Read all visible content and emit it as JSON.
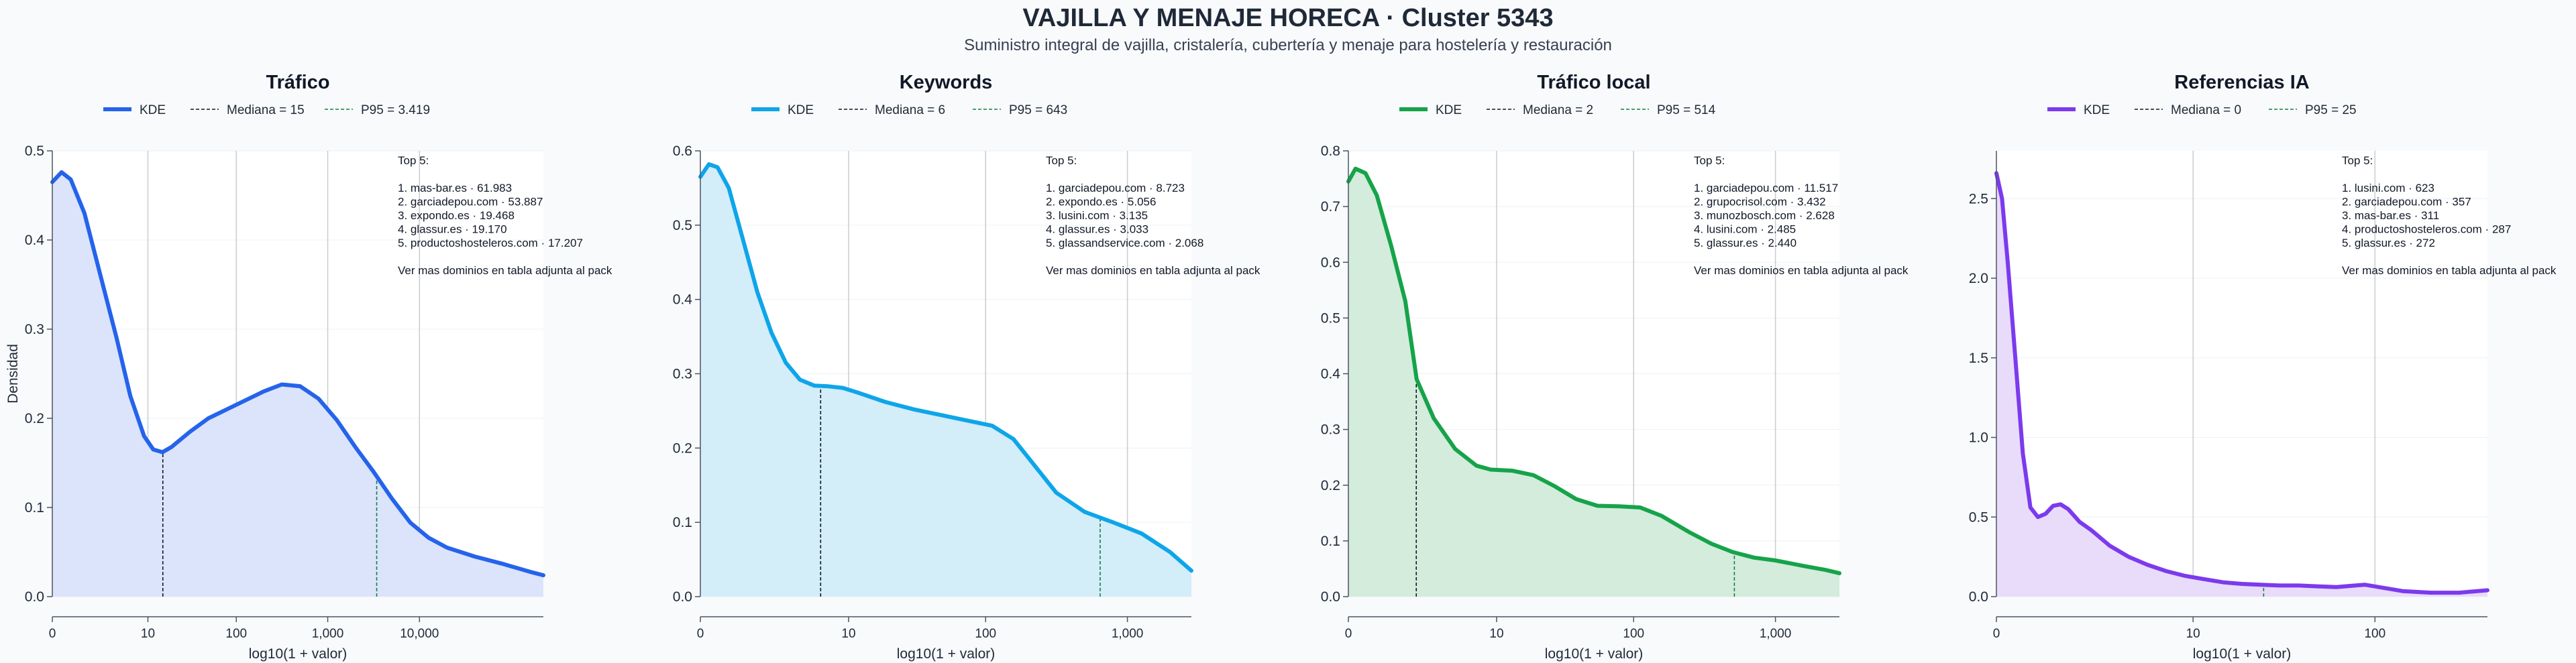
{
  "title": "VAJILLA Y MENAJE HORECA · Cluster 5343",
  "subtitle": "Suministro integral de vajilla, cristalería, cubertería y menaje para hostelería y restauración",
  "chart_data": [
    {
      "type": "area",
      "title": "Tráfico",
      "color": "#2563eb",
      "fill": "#dbe4fb",
      "xlabel": "log10(1 + valor)",
      "ylabel": "Densidad",
      "xscale": "log10(1+x)",
      "xlim": [
        0,
        5.35
      ],
      "ylim": [
        0,
        0.5
      ],
      "yticks": [
        0.0,
        0.1,
        0.2,
        0.3,
        0.4,
        0.5
      ],
      "ytick_labels": [
        "0.0",
        "0.1",
        "0.2",
        "0.3",
        "0.4",
        "0.5"
      ],
      "xticks": [
        0,
        10,
        100,
        1000,
        10000
      ],
      "xtick_labels": [
        "0",
        "10",
        "100",
        "1,000",
        "10,000"
      ],
      "legend": [
        "KDE",
        "Mediana = 15",
        "P95 = 3.419"
      ],
      "legend_position": "top-center",
      "median": 15,
      "p95": 3419,
      "kde": [
        [
          0,
          0.465
        ],
        [
          0.1,
          0.476
        ],
        [
          0.2,
          0.468
        ],
        [
          0.35,
          0.43
        ],
        [
          0.5,
          0.37
        ],
        [
          0.7,
          0.29
        ],
        [
          0.85,
          0.225
        ],
        [
          1.0,
          0.18
        ],
        [
          1.1,
          0.165
        ],
        [
          1.2,
          0.162
        ],
        [
          1.3,
          0.168
        ],
        [
          1.5,
          0.185
        ],
        [
          1.7,
          0.2
        ],
        [
          1.9,
          0.21
        ],
        [
          2.1,
          0.22
        ],
        [
          2.3,
          0.23
        ],
        [
          2.5,
          0.238
        ],
        [
          2.7,
          0.236
        ],
        [
          2.9,
          0.222
        ],
        [
          3.1,
          0.198
        ],
        [
          3.3,
          0.168
        ],
        [
          3.5,
          0.14
        ],
        [
          3.7,
          0.11
        ],
        [
          3.9,
          0.083
        ],
        [
          4.1,
          0.066
        ],
        [
          4.3,
          0.055
        ],
        [
          4.6,
          0.045
        ],
        [
          4.9,
          0.037
        ],
        [
          5.2,
          0.028
        ],
        [
          5.35,
          0.024
        ]
      ],
      "annotation": [
        "Top 5:",
        "",
        "1. mas-bar.es · 61.983",
        "2. garciadepou.com · 53.887",
        "3. expondo.es · 19.468",
        "4. glassur.es · 19.170",
        "5. productoshosteleros.com · 17.207",
        "",
        "Ver mas dominios en tabla adjunta al pack"
      ]
    },
    {
      "type": "area",
      "title": "Keywords",
      "color": "#0ea5e9",
      "fill": "#d3edf9",
      "xlabel": "log10(1 + valor)",
      "ylabel": "",
      "xscale": "log10(1+x)",
      "xlim": [
        0,
        3.45
      ],
      "ylim": [
        0,
        0.6
      ],
      "yticks": [
        0.0,
        0.1,
        0.2,
        0.3,
        0.4,
        0.5,
        0.6
      ],
      "ytick_labels": [
        "0.0",
        "0.1",
        "0.2",
        "0.3",
        "0.4",
        "0.5",
        "0.6"
      ],
      "xticks": [
        0,
        10,
        100,
        1000
      ],
      "xtick_labels": [
        "0",
        "10",
        "100",
        "1,000"
      ],
      "legend": [
        "KDE",
        "Mediana = 6",
        "P95 = 643"
      ],
      "legend_position": "top-center",
      "median": 6,
      "p95": 643,
      "kde": [
        [
          0,
          0.565
        ],
        [
          0.06,
          0.582
        ],
        [
          0.12,
          0.578
        ],
        [
          0.2,
          0.55
        ],
        [
          0.3,
          0.48
        ],
        [
          0.4,
          0.41
        ],
        [
          0.5,
          0.355
        ],
        [
          0.6,
          0.315
        ],
        [
          0.7,
          0.292
        ],
        [
          0.8,
          0.284
        ],
        [
          0.9,
          0.283
        ],
        [
          1.0,
          0.281
        ],
        [
          1.1,
          0.275
        ],
        [
          1.3,
          0.262
        ],
        [
          1.5,
          0.252
        ],
        [
          1.7,
          0.244
        ],
        [
          1.9,
          0.236
        ],
        [
          2.05,
          0.23
        ],
        [
          2.2,
          0.212
        ],
        [
          2.35,
          0.176
        ],
        [
          2.5,
          0.14
        ],
        [
          2.7,
          0.114
        ],
        [
          2.9,
          0.1
        ],
        [
          3.1,
          0.085
        ],
        [
          3.3,
          0.06
        ],
        [
          3.45,
          0.035
        ]
      ],
      "annotation": [
        "Top 5:",
        "",
        "1. garciadepou.com · 8.723",
        "2. expondo.es · 5.056",
        "3. lusini.com · 3.135",
        "4. glassur.es · 3.033",
        "5. glassandservice.com · 2.068",
        "",
        "Ver mas dominios en tabla adjunta al pack"
      ]
    },
    {
      "type": "area",
      "title": "Tráfico local",
      "color": "#16a34a",
      "fill": "#d3ecdc",
      "xlabel": "log10(1 + valor)",
      "ylabel": "",
      "xscale": "log10(1+x)",
      "xlim": [
        0,
        3.45
      ],
      "ylim": [
        0,
        0.8
      ],
      "yticks": [
        0.0,
        0.1,
        0.2,
        0.3,
        0.4,
        0.5,
        0.6,
        0.7,
        0.8
      ],
      "ytick_labels": [
        "0.0",
        "0.1",
        "0.2",
        "0.3",
        "0.4",
        "0.5",
        "0.6",
        "0.7",
        "0.8"
      ],
      "xticks": [
        0,
        10,
        100,
        1000
      ],
      "xtick_labels": [
        "0",
        "10",
        "100",
        "1,000"
      ],
      "legend": [
        "KDE",
        "Mediana = 2",
        "P95 = 514"
      ],
      "legend_position": "top-center",
      "median": 2,
      "p95": 514,
      "kde": [
        [
          0,
          0.745
        ],
        [
          0.05,
          0.768
        ],
        [
          0.12,
          0.76
        ],
        [
          0.2,
          0.72
        ],
        [
          0.3,
          0.63
        ],
        [
          0.4,
          0.53
        ],
        [
          0.48,
          0.39
        ],
        [
          0.6,
          0.32
        ],
        [
          0.75,
          0.265
        ],
        [
          0.9,
          0.235
        ],
        [
          1.0,
          0.228
        ],
        [
          1.15,
          0.226
        ],
        [
          1.3,
          0.218
        ],
        [
          1.45,
          0.198
        ],
        [
          1.6,
          0.175
        ],
        [
          1.75,
          0.163
        ],
        [
          1.9,
          0.162
        ],
        [
          2.05,
          0.16
        ],
        [
          2.2,
          0.145
        ],
        [
          2.4,
          0.115
        ],
        [
          2.55,
          0.095
        ],
        [
          2.7,
          0.08
        ],
        [
          2.85,
          0.07
        ],
        [
          3.0,
          0.065
        ],
        [
          3.2,
          0.055
        ],
        [
          3.35,
          0.048
        ],
        [
          3.45,
          0.042
        ]
      ],
      "annotation": [
        "Top 5:",
        "",
        "1. garciadepou.com · 11.517",
        "2. grupocrisol.com · 3.432",
        "3. munozbosch.com · 2.628",
        "4. lusini.com · 2.485",
        "5. glassur.es · 2.440",
        "",
        "Ver mas dominios en tabla adjunta al pack"
      ]
    },
    {
      "type": "area",
      "title": "Referencias IA",
      "color": "#7c3aed",
      "fill": "#e8dcfa",
      "xlabel": "log10(1 + valor)",
      "ylabel": "",
      "xscale": "log10(1+x)",
      "xlim": [
        0,
        2.6
      ],
      "ylim": [
        0,
        2.8
      ],
      "yticks": [
        0.0,
        0.5,
        1.0,
        1.5,
        2.0,
        2.5
      ],
      "ytick_labels": [
        "0.0",
        "0.5",
        "1.0",
        "1.5",
        "2.0",
        "2.5"
      ],
      "xticks": [
        0,
        10,
        100
      ],
      "xtick_labels": [
        "0",
        "10",
        "100"
      ],
      "legend": [
        "KDE",
        "Mediana = 0",
        "P95 = 25"
      ],
      "legend_position": "top-center",
      "median": 0,
      "p95": 25,
      "kde": [
        [
          0,
          2.66
        ],
        [
          0.03,
          2.5
        ],
        [
          0.06,
          2.1
        ],
        [
          0.1,
          1.5
        ],
        [
          0.14,
          0.9
        ],
        [
          0.18,
          0.56
        ],
        [
          0.22,
          0.5
        ],
        [
          0.26,
          0.52
        ],
        [
          0.3,
          0.57
        ],
        [
          0.34,
          0.58
        ],
        [
          0.38,
          0.55
        ],
        [
          0.44,
          0.47
        ],
        [
          0.5,
          0.42
        ],
        [
          0.6,
          0.32
        ],
        [
          0.7,
          0.25
        ],
        [
          0.8,
          0.2
        ],
        [
          0.9,
          0.16
        ],
        [
          1.0,
          0.13
        ],
        [
          1.1,
          0.11
        ],
        [
          1.2,
          0.09
        ],
        [
          1.3,
          0.08
        ],
        [
          1.4,
          0.075
        ],
        [
          1.5,
          0.07
        ],
        [
          1.6,
          0.07
        ],
        [
          1.7,
          0.065
        ],
        [
          1.8,
          0.06
        ],
        [
          1.9,
          0.07
        ],
        [
          1.95,
          0.075
        ],
        [
          2.05,
          0.055
        ],
        [
          2.15,
          0.035
        ],
        [
          2.3,
          0.025
        ],
        [
          2.45,
          0.025
        ],
        [
          2.6,
          0.04
        ]
      ],
      "annotation": [
        "Top 5:",
        "",
        "1. lusini.com · 623",
        "2. garciadepou.com · 357",
        "3. mas-bar.es · 311",
        "4. productoshosteleros.com · 287",
        "5. glassur.es · 272",
        "",
        "Ver mas dominios en tabla adjunta al pack"
      ]
    }
  ]
}
